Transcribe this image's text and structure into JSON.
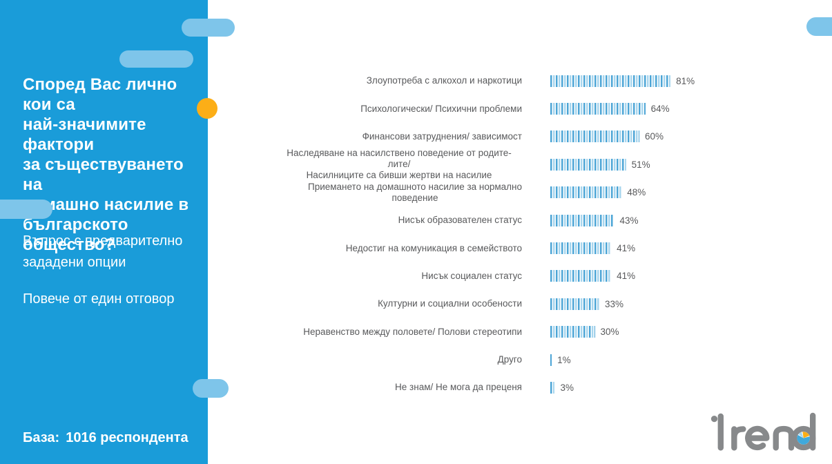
{
  "sidebar": {
    "question_title": "Според Вас лично кои са\nнай-значимите фактори\nза съществуването на\nдомашно насилие в\nбългарското общество?",
    "note_line1": "Въпрос с предварително\nзададени опции",
    "note_line2": "Повече от един отговор",
    "base_label": "База:",
    "base_value": "1016 респондента"
  },
  "chart_data": {
    "type": "bar",
    "orientation": "horizontal",
    "unit": "%",
    "xlim": [
      0,
      100
    ],
    "grid": false,
    "legend": false,
    "bar_fill_style": "vertical-stripes",
    "categories": [
      "Злоупотреба с алкохол и наркотици",
      "Психологически/ Психични проблеми",
      "Финансови затруднения/ зависимост",
      "Наследяване на насилствено поведение от родите-лите/\nНасилниците са бивши жертви на насилие",
      "Приемането на домашното насилие за нормално\nповедение",
      "Нисък образователен статус",
      "Недостиг на комуникация в семейството",
      "Нисък социален статус",
      "Културни и социални особености",
      "Неравенство между половете/ Полови стереотипи",
      "Друго",
      "Не знам/ Не мога да преценя"
    ],
    "values": [
      81,
      64,
      60,
      51,
      48,
      43,
      41,
      41,
      33,
      30,
      1,
      3
    ]
  },
  "logo": {
    "text": "trend"
  },
  "colors": {
    "sidebar_bg": "#1A9CD9",
    "decor_light_blue": "#7EC5EA",
    "accent_orange": "#FCAE17",
    "bar_stripe_dark": "#4CA5D6",
    "bar_stripe_light": "#A8D6EE",
    "text_dark": "#58595B",
    "logo_gray": "#87898B",
    "pie_blue": "#3FA9DC",
    "pie_light": "#A5D6EE",
    "pie_yellow": "#FBAE17"
  }
}
